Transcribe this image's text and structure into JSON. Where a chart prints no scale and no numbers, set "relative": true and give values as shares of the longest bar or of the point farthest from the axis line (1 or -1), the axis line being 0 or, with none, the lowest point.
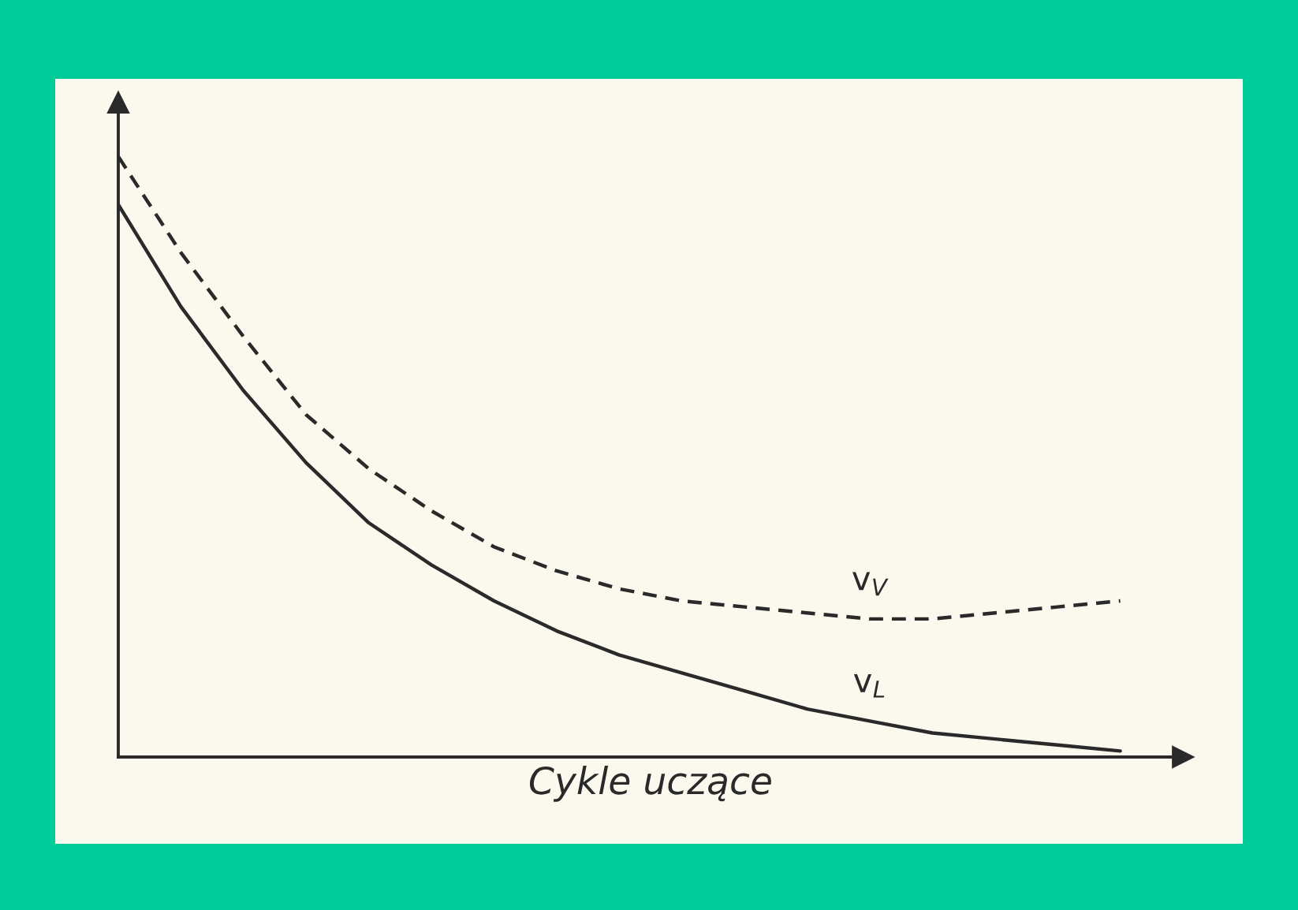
{
  "chart_data": {
    "type": "line",
    "relative": true,
    "xlabel": "Cykle uczące",
    "legend": false,
    "categories": [
      null,
      null,
      null,
      null,
      null,
      null,
      null,
      null,
      null,
      null,
      null,
      null,
      null,
      null,
      null,
      null,
      null
    ],
    "series": [
      {
        "name": "v$_{V}$",
        "color": "#2a2a2a",
        "line_style": "dashed",
        "values": [
          1,
          0.84,
          0.7,
          0.57,
          0.48,
          0.41,
          0.35,
          0.31,
          0.28,
          0.26,
          0.25,
          0.24,
          0.23,
          0.23,
          0.24,
          0.25,
          0.26
        ]
      },
      {
        "name": "v$_{L}$",
        "color": "#2a2a2a",
        "line_style": "solid",
        "values": [
          0.92,
          0.75,
          0.61,
          0.49,
          0.39,
          0.32,
          0.26,
          0.21,
          0.17,
          0.14,
          0.11,
          0.08,
          0.06,
          0.04,
          0.03,
          0.02,
          0.01
        ]
      }
    ]
  }
}
